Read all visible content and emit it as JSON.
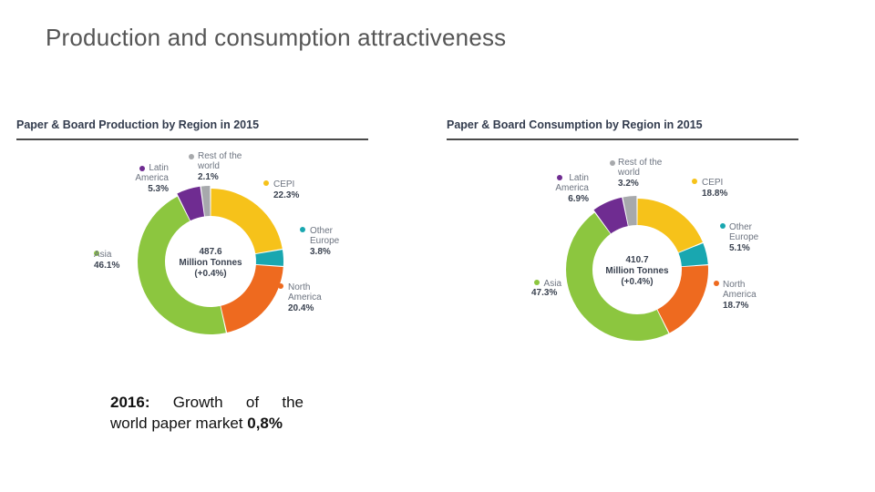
{
  "slide": {
    "title": "Production and consumption attractiveness",
    "note_year": "2016:",
    "note_words": [
      "Growth",
      "of",
      "the"
    ],
    "note_line2": "world paper market",
    "note_value": "0,8%"
  },
  "colors": {
    "cepi": "#f6c21a",
    "other_europe": "#19a7b0",
    "north_america": "#ee6a1f",
    "asia": "#8cc63f",
    "latin_america": "#6f2c91",
    "rest_of_world": "#a7a9ac"
  },
  "chart_data": [
    {
      "type": "pie",
      "title": "Paper & Board Production by Region in 2015",
      "center_text": [
        "487.6",
        "Million Tonnes",
        "(+0.4%)"
      ],
      "slices": [
        {
          "key": "cepi",
          "label": [
            "CEPI"
          ],
          "value_text": "22.3%",
          "value": 22.3
        },
        {
          "key": "other_europe",
          "label": [
            "Other",
            "Europe"
          ],
          "value_text": "3.8%",
          "value": 3.8
        },
        {
          "key": "north_america",
          "label": [
            "North",
            "America"
          ],
          "value_text": "20.4%",
          "value": 20.4
        },
        {
          "key": "asia",
          "label": [
            "Asia"
          ],
          "value_text": "46.1%",
          "value": 46.1
        },
        {
          "key": "latin_america",
          "label": [
            "Latin",
            "America"
          ],
          "value_text": "5.3%",
          "value": 5.3
        },
        {
          "key": "rest_of_world",
          "label": [
            "Rest of the",
            "world"
          ],
          "value_text": "2.1%",
          "value": 2.1
        }
      ]
    },
    {
      "type": "pie",
      "title": "Paper & Board Consumption by Region in 2015",
      "center_text": [
        "410.7",
        "Million Tonnes",
        "(+0.4%)"
      ],
      "slices": [
        {
          "key": "cepi",
          "label": [
            "CEPI"
          ],
          "value_text": "18.8%",
          "value": 18.8
        },
        {
          "key": "other_europe",
          "label": [
            "Other",
            "Europe"
          ],
          "value_text": "5.1%",
          "value": 5.1
        },
        {
          "key": "north_america",
          "label": [
            "North",
            "America"
          ],
          "value_text": "18.7%",
          "value": 18.7
        },
        {
          "key": "asia",
          "label": [
            "Asia"
          ],
          "value_text": "47.3%",
          "value": 47.3
        },
        {
          "key": "latin_america",
          "label": [
            "Latin",
            "America"
          ],
          "value_text": "6.9%",
          "value": 6.9
        },
        {
          "key": "rest_of_world",
          "label": [
            "Rest of the",
            "world"
          ],
          "value_text": "3.2%",
          "value": 3.2
        }
      ]
    }
  ]
}
